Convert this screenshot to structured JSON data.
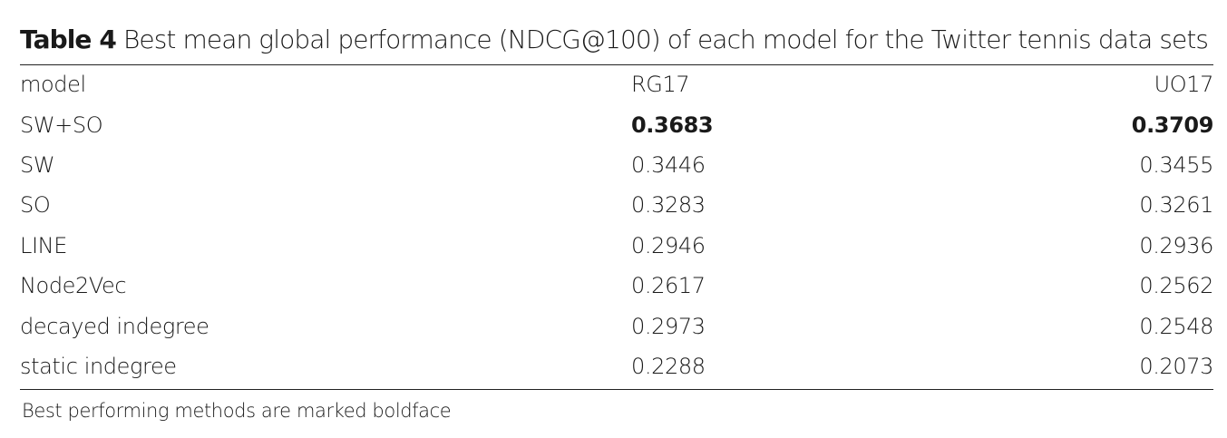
{
  "caption": {
    "label": "Table 4",
    "text": "Best mean global performance (NDCG@100) of each model for the Twitter tennis data sets"
  },
  "table": {
    "headers": [
      "model",
      "RG17",
      "UO17"
    ],
    "rows": [
      {
        "model": "SW+SO",
        "rg17": "0.3683",
        "uo17": "0.3709"
      },
      {
        "model": "SW",
        "rg17": "0.3446",
        "uo17": "0.3455"
      },
      {
        "model": "SO",
        "rg17": "0.3283",
        "uo17": "0.3261"
      },
      {
        "model": "LINE",
        "rg17": "0.2946",
        "uo17": "0.2936"
      },
      {
        "model": "Node2Vec",
        "rg17": "0.2617",
        "uo17": "0.2562"
      },
      {
        "model": "decayed indegree",
        "rg17": "0.2973",
        "uo17": "0.2548"
      },
      {
        "model": "static indegree",
        "rg17": "0.2288",
        "uo17": "0.2073"
      }
    ]
  },
  "footnote": "Best performing methods are marked boldface"
}
